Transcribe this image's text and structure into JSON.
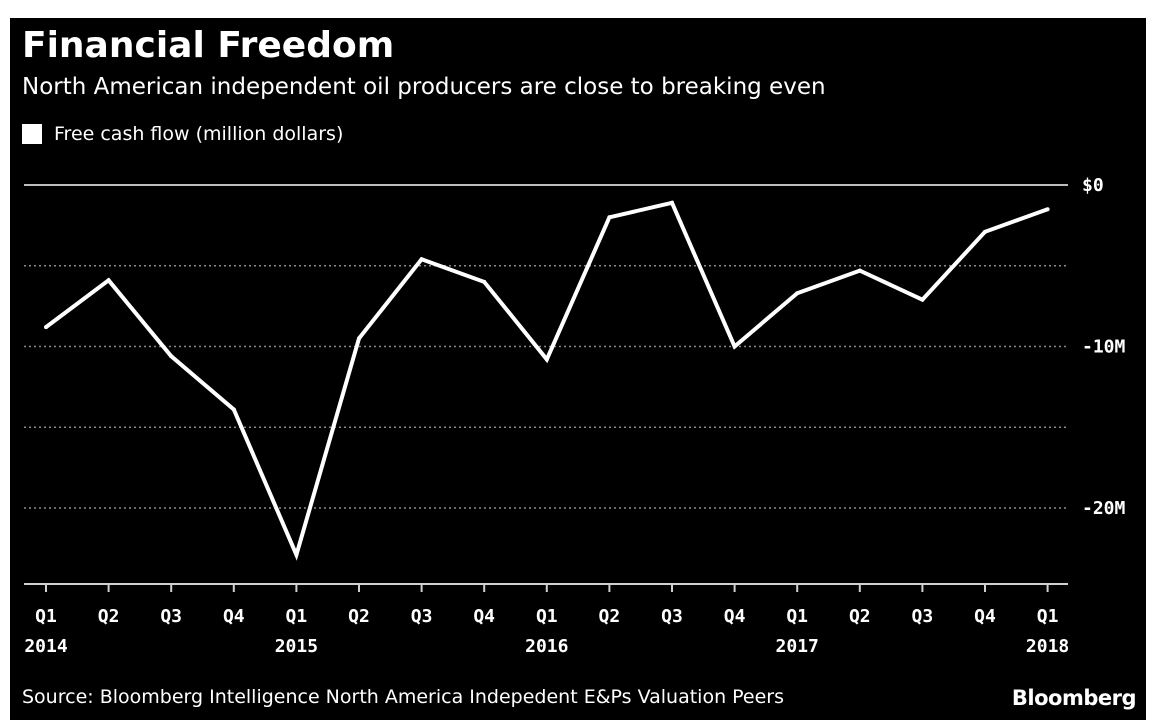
{
  "title": "Financial Freedom",
  "subtitle": "North American independent oil producers are close to breaking even",
  "legend_label": "Free cash flow (million dollars)",
  "source": "Source: Bloomberg Intelligence North America Indepedent E&Ps Valuation Peers",
  "brand": "Bloomberg",
  "colors": {
    "background": "#000000",
    "line": "#ffffff",
    "grid": "#8a8a8a",
    "text": "#ffffff"
  },
  "chart_data": {
    "type": "line",
    "categories": [
      "Q1 2014",
      "Q2 2014",
      "Q3 2014",
      "Q4 2014",
      "Q1 2015",
      "Q2 2015",
      "Q3 2015",
      "Q4 2015",
      "Q1 2016",
      "Q2 2016",
      "Q3 2016",
      "Q4 2016",
      "Q1 2017",
      "Q2 2017",
      "Q3 2017",
      "Q4 2017",
      "Q1 2018"
    ],
    "x_tick_quarters": [
      "Q1",
      "Q2",
      "Q3",
      "Q4",
      "Q1",
      "Q2",
      "Q3",
      "Q4",
      "Q1",
      "Q2",
      "Q3",
      "Q4",
      "Q1",
      "Q2",
      "Q3",
      "Q4",
      "Q1"
    ],
    "x_tick_years": [
      "2014",
      "",
      "",
      "",
      "2015",
      "",
      "",
      "",
      "2016",
      "",
      "",
      "",
      "2017",
      "",
      "",
      "",
      "2018"
    ],
    "series": [
      {
        "name": "Free cash flow (million dollars)",
        "values": [
          -8.8,
          -5.9,
          -10.6,
          -13.9,
          -22.9,
          -9.5,
          -4.6,
          -6.0,
          -10.8,
          -2.0,
          -1.1,
          -10.0,
          -6.7,
          -5.3,
          -7.1,
          -2.9,
          -1.5
        ]
      }
    ],
    "yticks": [
      {
        "value": 0,
        "label": "$0"
      },
      {
        "value": -5,
        "label": ""
      },
      {
        "value": -10,
        "label": "-10M"
      },
      {
        "value": -15,
        "label": ""
      },
      {
        "value": -20,
        "label": "-20M"
      }
    ],
    "ylim": [
      -25,
      0
    ],
    "grid": true,
    "legend_position": "top-left"
  }
}
